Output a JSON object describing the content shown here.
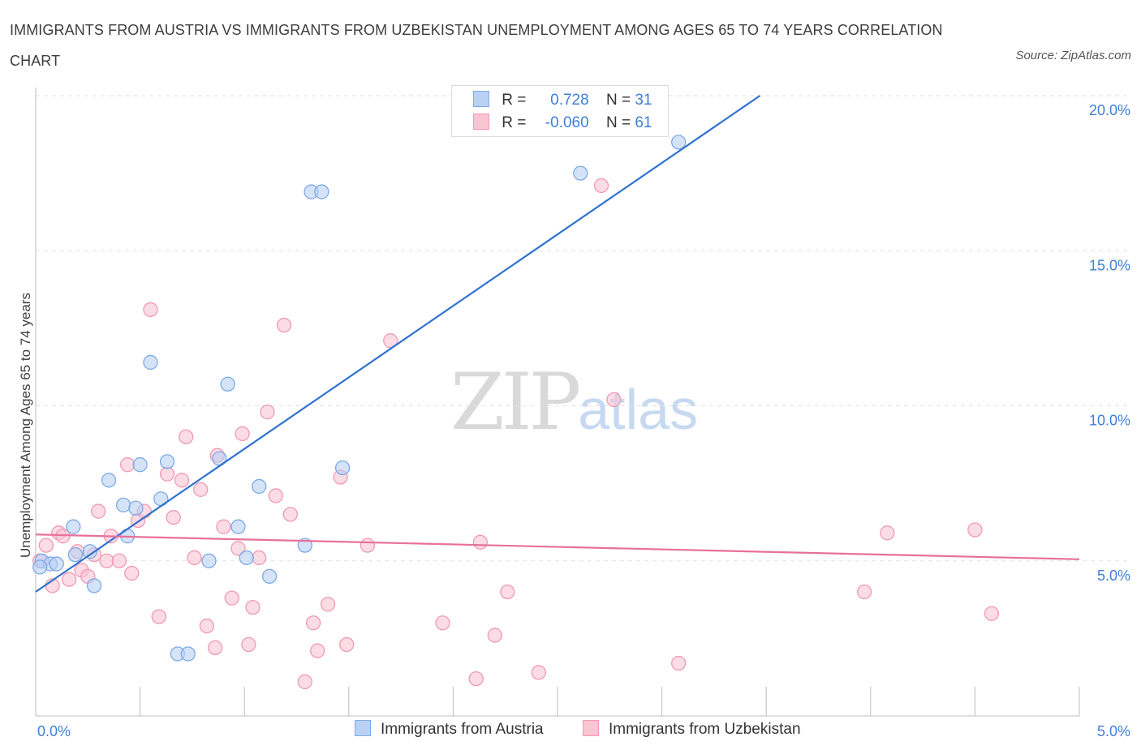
{
  "title": "IMMIGRANTS FROM AUSTRIA VS IMMIGRANTS FROM UZBEKISTAN UNEMPLOYMENT AMONG AGES 65 TO 74 YEARS CORRELATION CHART",
  "source": "Source: ZipAtlas.com",
  "watermark": {
    "zip": "ZIP",
    "atlas": "atlas"
  },
  "colors": {
    "austria_fill": "#b9d1f3",
    "austria_stroke": "#7eaae6",
    "austria_line": "#2f72cf",
    "uzbek_fill": "#f9c5d3",
    "uzbek_stroke": "#ef9ab2",
    "uzbek_line": "#e8709a",
    "tick_label": "#3f7fd8"
  },
  "legend": [
    {
      "r_label": "R =",
      "r_value": "0.728",
      "n_label": "N =",
      "n_value": "31"
    },
    {
      "r_label": "R =",
      "r_value": "-0.060",
      "n_label": "N =",
      "n_value": "61"
    }
  ],
  "chart_data": {
    "type": "scatter",
    "xlabel": "",
    "ylabel": "Unemployment Among Ages 65 to 74 years",
    "xlim": [
      0,
      5
    ],
    "ylim": [
      0,
      20
    ],
    "x_tick_labels": [
      "0.0%",
      "5.0%"
    ],
    "y_ticks": [
      5,
      10,
      15,
      20
    ],
    "y_tick_labels": [
      "5.0%",
      "10.0%",
      "15.0%",
      "20.0%"
    ],
    "grid": true,
    "legend_position": "bottom-center",
    "series": [
      {
        "name": "Immigrants from Austria",
        "r": 0.728,
        "n": 31,
        "trend": {
          "x0": 0.0,
          "y0": 4.0,
          "x1": 3.47,
          "y1": 20.0
        },
        "points": [
          [
            0.03,
            5.0
          ],
          [
            0.07,
            4.9
          ],
          [
            0.1,
            4.9
          ],
          [
            0.18,
            6.1
          ],
          [
            0.19,
            5.2
          ],
          [
            0.28,
            4.2
          ],
          [
            0.26,
            5.3
          ],
          [
            0.35,
            7.6
          ],
          [
            0.42,
            6.8
          ],
          [
            0.44,
            5.8
          ],
          [
            0.48,
            6.7
          ],
          [
            0.5,
            8.1
          ],
          [
            0.55,
            11.4
          ],
          [
            0.6,
            7.0
          ],
          [
            0.63,
            8.2
          ],
          [
            0.68,
            2.0
          ],
          [
            0.73,
            2.0
          ],
          [
            0.83,
            5.0
          ],
          [
            0.88,
            8.3
          ],
          [
            0.92,
            10.7
          ],
          [
            0.97,
            6.1
          ],
          [
            1.01,
            5.1
          ],
          [
            1.07,
            7.4
          ],
          [
            1.12,
            4.5
          ],
          [
            1.29,
            5.5
          ],
          [
            1.32,
            16.9
          ],
          [
            1.37,
            16.9
          ],
          [
            1.47,
            8.0
          ],
          [
            2.61,
            17.5
          ],
          [
            3.08,
            18.5
          ],
          [
            0.02,
            4.8
          ]
        ]
      },
      {
        "name": "Immigrants from Uzbekistan",
        "r": -0.06,
        "n": 61,
        "trend": {
          "x0": 0.0,
          "y0": 5.85,
          "x1": 5.0,
          "y1": 5.05
        },
        "points": [
          [
            0.02,
            5.0
          ],
          [
            0.05,
            5.5
          ],
          [
            0.08,
            4.2
          ],
          [
            0.11,
            5.9
          ],
          [
            0.13,
            5.8
          ],
          [
            0.16,
            4.4
          ],
          [
            0.2,
            5.3
          ],
          [
            0.22,
            4.7
          ],
          [
            0.25,
            4.5
          ],
          [
            0.28,
            5.2
          ],
          [
            0.3,
            6.6
          ],
          [
            0.34,
            5.0
          ],
          [
            0.36,
            5.8
          ],
          [
            0.4,
            5.0
          ],
          [
            0.44,
            8.1
          ],
          [
            0.46,
            4.6
          ],
          [
            0.49,
            6.3
          ],
          [
            0.52,
            6.6
          ],
          [
            0.55,
            13.1
          ],
          [
            0.59,
            3.2
          ],
          [
            0.63,
            7.8
          ],
          [
            0.66,
            6.4
          ],
          [
            0.7,
            7.6
          ],
          [
            0.72,
            9.0
          ],
          [
            0.76,
            5.1
          ],
          [
            0.79,
            7.3
          ],
          [
            0.82,
            2.9
          ],
          [
            0.86,
            2.2
          ],
          [
            0.87,
            8.4
          ],
          [
            0.9,
            6.1
          ],
          [
            0.94,
            3.8
          ],
          [
            0.97,
            5.4
          ],
          [
            0.99,
            9.1
          ],
          [
            1.02,
            2.3
          ],
          [
            1.04,
            3.5
          ],
          [
            1.07,
            5.1
          ],
          [
            1.11,
            9.8
          ],
          [
            1.15,
            7.1
          ],
          [
            1.19,
            12.6
          ],
          [
            1.22,
            6.5
          ],
          [
            1.29,
            1.1
          ],
          [
            1.33,
            3.0
          ],
          [
            1.35,
            2.1
          ],
          [
            1.4,
            3.6
          ],
          [
            1.46,
            7.7
          ],
          [
            1.49,
            2.3
          ],
          [
            1.59,
            5.5
          ],
          [
            1.7,
            12.1
          ],
          [
            1.95,
            3.0
          ],
          [
            2.11,
            1.2
          ],
          [
            2.13,
            5.6
          ],
          [
            2.2,
            2.6
          ],
          [
            2.26,
            4.0
          ],
          [
            2.41,
            1.4
          ],
          [
            2.71,
            17.1
          ],
          [
            2.77,
            10.2
          ],
          [
            3.08,
            1.7
          ],
          [
            3.97,
            4.0
          ],
          [
            4.08,
            5.9
          ],
          [
            4.5,
            6.0
          ],
          [
            4.58,
            3.3
          ]
        ]
      }
    ]
  }
}
